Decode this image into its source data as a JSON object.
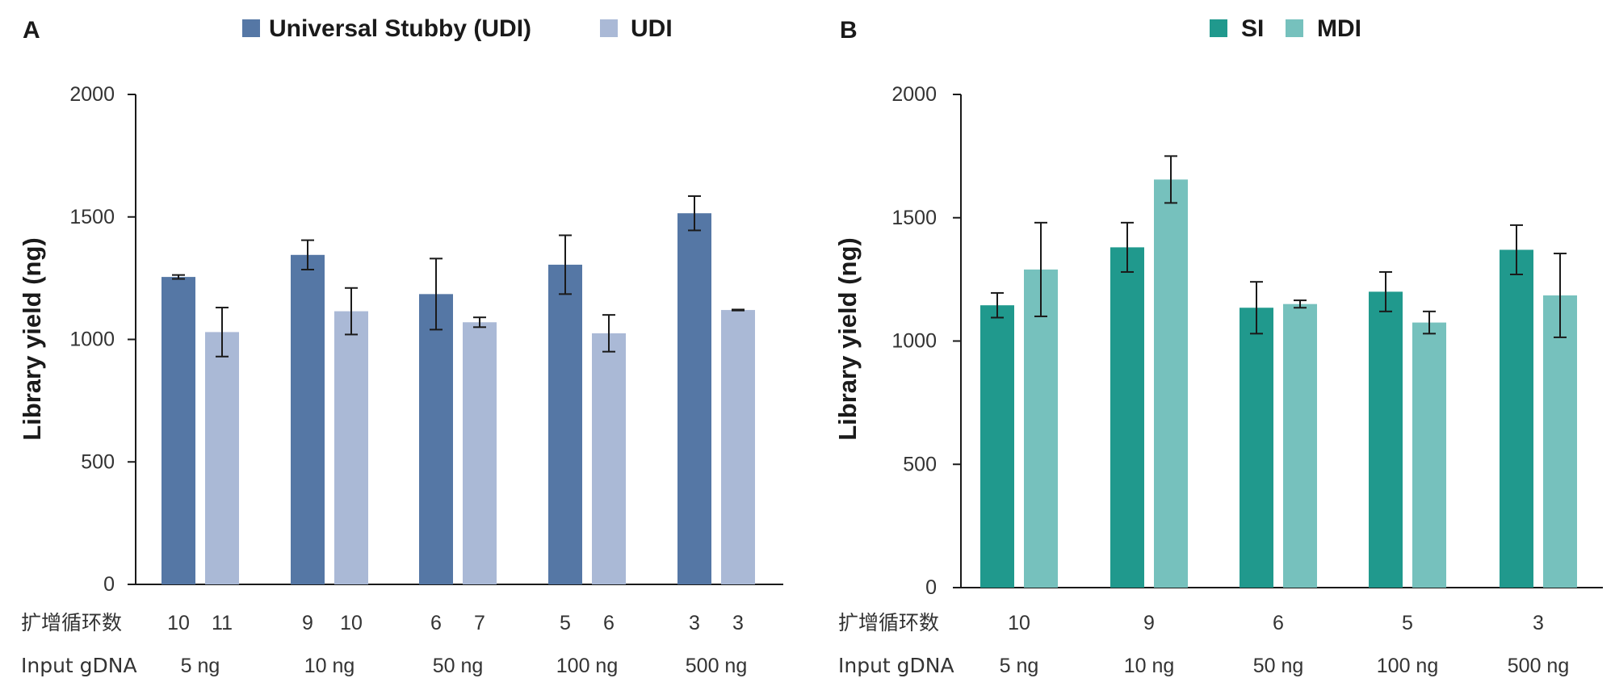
{
  "row_labels": {
    "cycles": "扩增循环数",
    "input": "Input gDNA"
  },
  "chart_data": [
    {
      "panel": "A",
      "type": "bar",
      "ylabel": "Library yield (ng)",
      "ylim": [
        0,
        2000
      ],
      "yticks": [
        0,
        500,
        1000,
        1500,
        2000
      ],
      "categories": [
        "5 ng",
        "10 ng",
        "50 ng",
        "100 ng",
        "500 ng"
      ],
      "cycle_labels": [
        [
          "10",
          "11"
        ],
        [
          "9",
          "10"
        ],
        [
          "6",
          "7"
        ],
        [
          "5",
          "6"
        ],
        [
          "3",
          "3"
        ]
      ],
      "legend_position": "top-center",
      "series": [
        {
          "name": "Universal Stubby (UDI)",
          "color": "#5577a5",
          "values": [
            1255,
            1345,
            1185,
            1305,
            1515
          ],
          "errors": [
            8,
            60,
            145,
            120,
            70
          ]
        },
        {
          "name": "UDI",
          "color": "#aab9d6",
          "values": [
            1030,
            1115,
            1070,
            1025,
            1120
          ],
          "errors": [
            100,
            95,
            20,
            75,
            2
          ]
        }
      ]
    },
    {
      "panel": "B",
      "type": "bar",
      "ylabel": "Library yield (ng)",
      "ylim": [
        0,
        2000
      ],
      "yticks": [
        0,
        500,
        1000,
        1500,
        2000
      ],
      "categories": [
        "5 ng",
        "10 ng",
        "50 ng",
        "100 ng",
        "500 ng"
      ],
      "cycle_labels": [
        [
          "10"
        ],
        [
          "9"
        ],
        [
          "6"
        ],
        [
          "5"
        ],
        [
          "3"
        ]
      ],
      "legend_position": "top-center",
      "series": [
        {
          "name": "SI",
          "color": "#20998d",
          "values": [
            1145,
            1380,
            1135,
            1200,
            1370
          ],
          "errors": [
            50,
            100,
            105,
            80,
            100
          ]
        },
        {
          "name": "MDI",
          "color": "#76c1bd",
          "values": [
            1290,
            1655,
            1150,
            1075,
            1185
          ],
          "errors": [
            190,
            95,
            15,
            45,
            170
          ]
        }
      ]
    }
  ]
}
